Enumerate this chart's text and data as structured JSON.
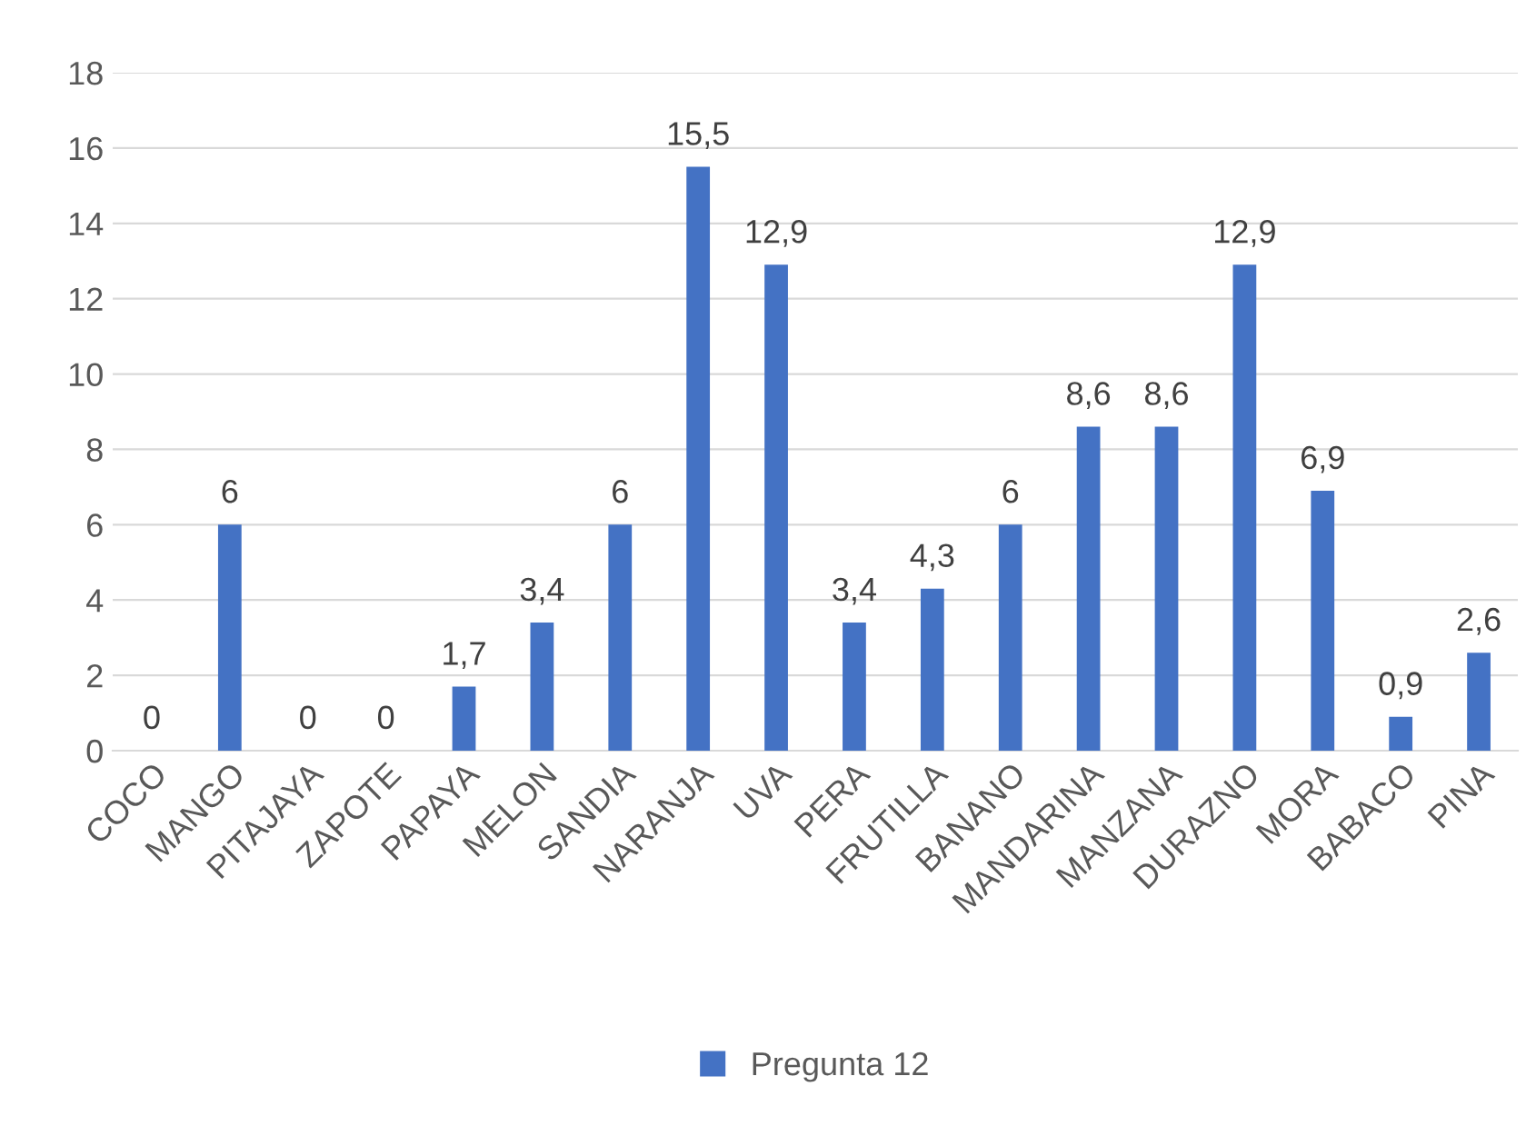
{
  "chart_data": {
    "type": "bar",
    "categories": [
      "COCO",
      "MANGO",
      "PITAJAYA",
      "ZAPOTE",
      "PAPAYA",
      "MELON",
      "SANDIA",
      "NARANJA",
      "UVA",
      "PERA",
      "FRUTILLA",
      "BANANO",
      "MANDARINA",
      "MANZANA",
      "DURAZNO",
      "MORA",
      "BABACO",
      "PINA"
    ],
    "series": [
      {
        "name": "Pregunta 12",
        "color": "#4472c4",
        "values": [
          0,
          6,
          0,
          0,
          1.7,
          3.4,
          6,
          15.5,
          12.9,
          3.4,
          4.3,
          6,
          8.6,
          8.6,
          12.9,
          6.9,
          0.9,
          2.6
        ],
        "value_labels": [
          "0",
          "6",
          "0",
          "0",
          "1,7",
          "3,4",
          "6",
          "15,5",
          "12,9",
          "3,4",
          "4,3",
          "6",
          "8,6",
          "8,6",
          "12,9",
          "6,9",
          "0,9",
          "2,6"
        ]
      }
    ],
    "ylim": [
      0,
      18
    ],
    "yticks": [
      0,
      2,
      4,
      6,
      8,
      10,
      12,
      14,
      16,
      18
    ],
    "grid": "y",
    "legend": "bottom"
  }
}
